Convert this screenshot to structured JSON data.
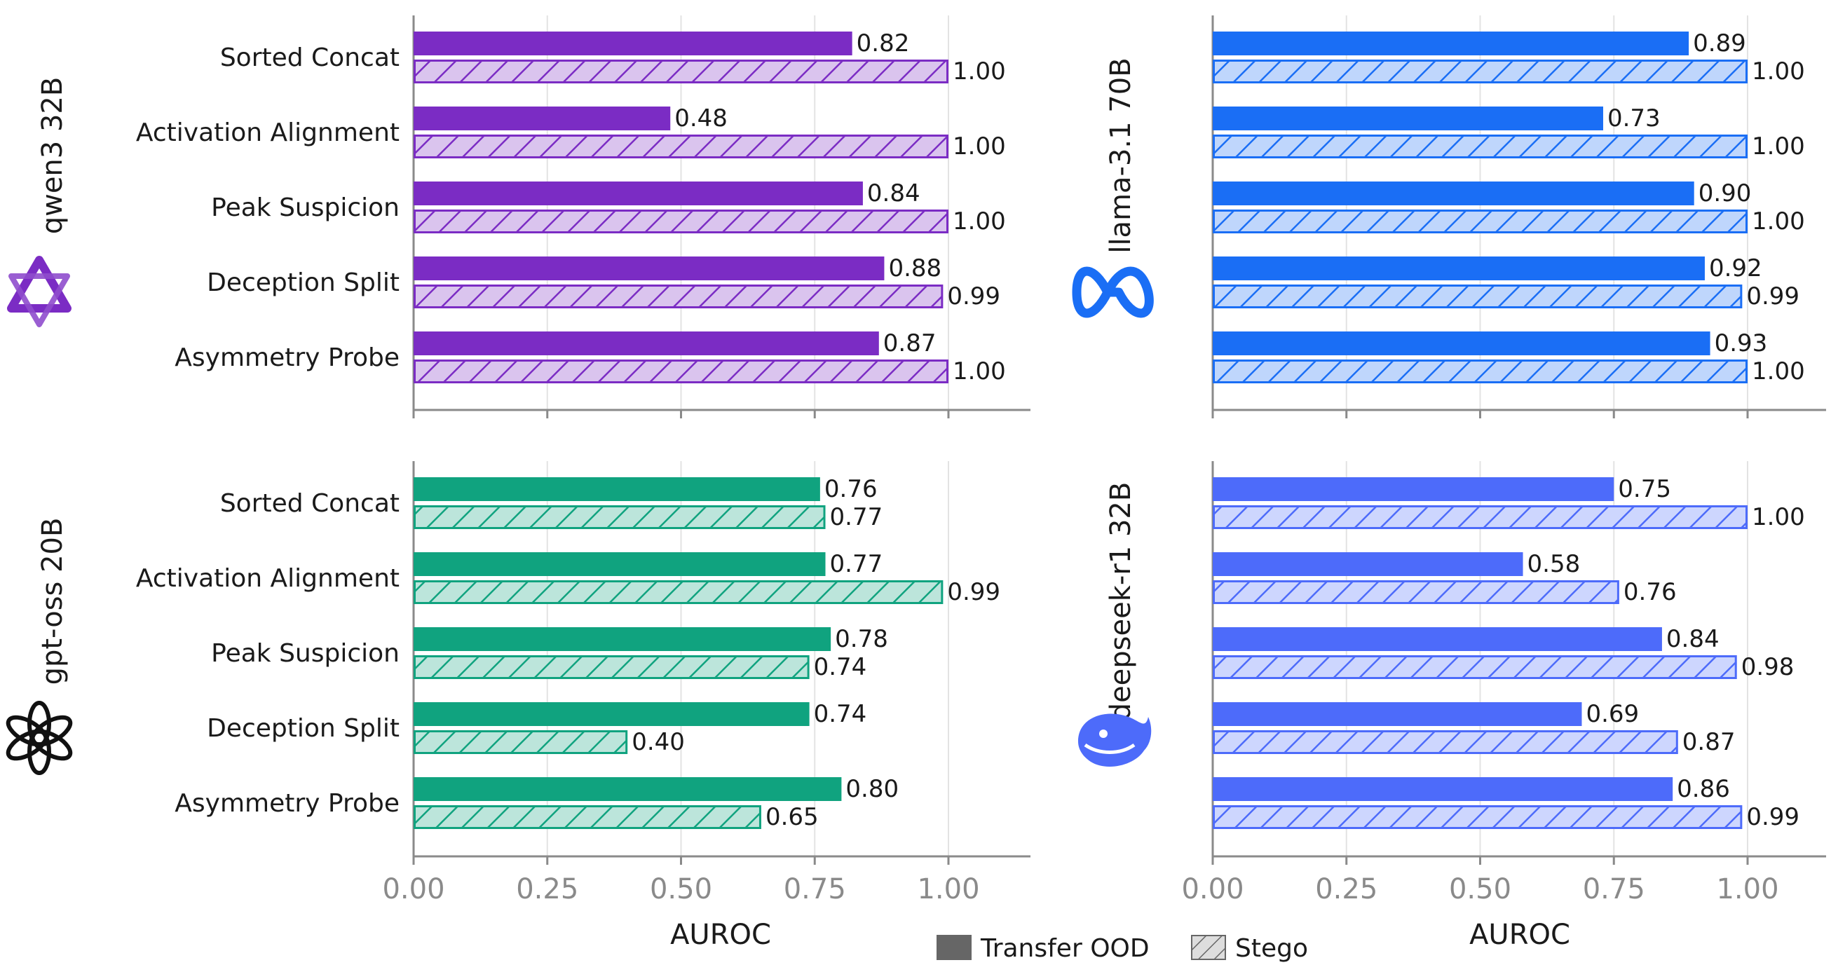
{
  "chart_data": [
    {
      "type": "bar",
      "model": "qwen3 32B",
      "icon": "qwen-logo-icon",
      "color": "#7b2cc4",
      "categories": [
        "Sorted Concat",
        "Activation Alignment",
        "Peak Suspicion",
        "Deception Split",
        "Asymmetry Probe"
      ],
      "series": [
        {
          "name": "Transfer OOD",
          "values": [
            0.82,
            0.48,
            0.84,
            0.88,
            0.87
          ],
          "labels": [
            "0.82",
            "0.48",
            "0.84",
            "0.88",
            "0.87"
          ]
        },
        {
          "name": "Stego",
          "values": [
            1.0,
            1.0,
            1.0,
            0.99,
            1.0
          ],
          "labels": [
            "1.00",
            "1.00",
            "1.00",
            "0.99",
            "1.00"
          ]
        }
      ],
      "xlim": [
        0,
        1.15
      ],
      "xticks": [],
      "xlabel": ""
    },
    {
      "type": "bar",
      "model": "llama-3.1 70B",
      "icon": "meta-logo-icon",
      "color": "#1a6ef5",
      "categories": [
        "Sorted Concat",
        "Activation Alignment",
        "Peak Suspicion",
        "Deception Split",
        "Asymmetry Probe"
      ],
      "series": [
        {
          "name": "Transfer OOD",
          "values": [
            0.89,
            0.73,
            0.9,
            0.92,
            0.93
          ],
          "labels": [
            "0.89",
            "0.73",
            "0.90",
            "0.92",
            "0.93"
          ]
        },
        {
          "name": "Stego",
          "values": [
            1.0,
            1.0,
            1.0,
            0.99,
            1.0
          ],
          "labels": [
            "1.00",
            "1.00",
            "1.00",
            "0.99",
            "1.00"
          ]
        }
      ],
      "xlim": [
        0,
        1.15
      ],
      "xticks": [],
      "xlabel": ""
    },
    {
      "type": "bar",
      "model": "gpt-oss 20B",
      "icon": "openai-logo-icon",
      "color": "#10a37f",
      "categories": [
        "Sorted Concat",
        "Activation Alignment",
        "Peak Suspicion",
        "Deception Split",
        "Asymmetry Probe"
      ],
      "series": [
        {
          "name": "Transfer OOD",
          "values": [
            0.76,
            0.77,
            0.78,
            0.74,
            0.8
          ],
          "labels": [
            "0.76",
            "0.77",
            "0.78",
            "0.74",
            "0.80"
          ]
        },
        {
          "name": "Stego",
          "values": [
            0.77,
            0.99,
            0.74,
            0.4,
            0.65
          ],
          "labels": [
            "0.77",
            "0.99",
            "0.74",
            "0.40",
            "0.65"
          ]
        }
      ],
      "xlim": [
        0,
        1.15
      ],
      "xticks": [
        "0.00",
        "0.25",
        "0.50",
        "0.75",
        "1.00"
      ],
      "xlabel": "AUROC"
    },
    {
      "type": "bar",
      "model": "deepseek-r1 32B",
      "icon": "deepseek-whale-icon",
      "color": "#4d6bfa",
      "categories": [
        "Sorted Concat",
        "Activation Alignment",
        "Peak Suspicion",
        "Deception Split",
        "Asymmetry Probe"
      ],
      "series": [
        {
          "name": "Transfer OOD",
          "values": [
            0.75,
            0.58,
            0.84,
            0.69,
            0.86
          ],
          "labels": [
            "0.75",
            "0.58",
            "0.84",
            "0.69",
            "0.86"
          ]
        },
        {
          "name": "Stego",
          "values": [
            1.0,
            0.76,
            0.98,
            0.87,
            0.99
          ],
          "labels": [
            "1.00",
            "0.76",
            "0.98",
            "0.87",
            "0.99"
          ]
        }
      ],
      "xlim": [
        0,
        1.15
      ],
      "xticks": [
        "0.00",
        "0.25",
        "0.50",
        "0.75",
        "1.00"
      ],
      "xlabel": "AUROC"
    }
  ],
  "gridlines": [
    0.25,
    0.5,
    0.75,
    1.0
  ],
  "legend": {
    "placement": "bottom-center",
    "items": [
      {
        "label": "Transfer OOD",
        "style": "solid",
        "color": "#666666"
      },
      {
        "label": "Stego",
        "style": "hatched",
        "color": "#666666"
      }
    ]
  }
}
